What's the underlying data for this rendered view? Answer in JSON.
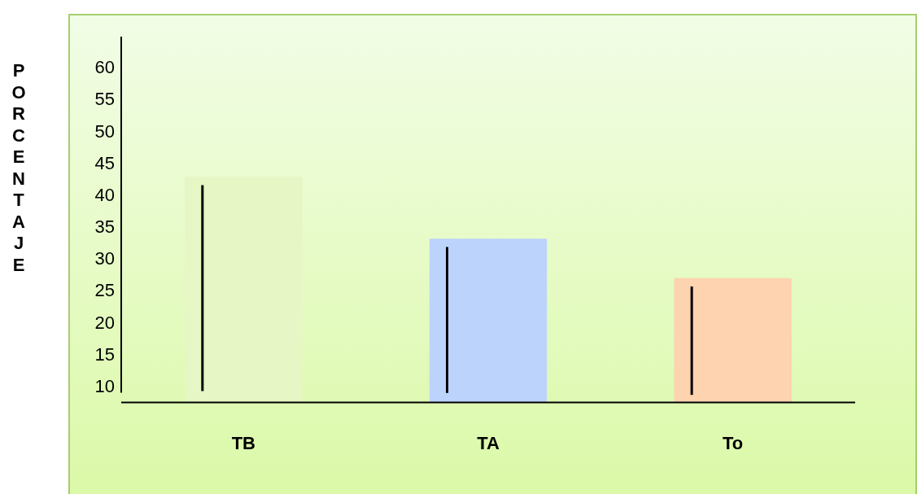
{
  "chart_data": {
    "type": "bar",
    "ylabel": "PORCENTAJE",
    "categories": [
      "TB",
      "TA",
      "To"
    ],
    "values": [
      43.0,
      33.3,
      27.1
    ],
    "colors": [
      "#e6f6c4",
      "#bcd3fb",
      "#fdd3b0"
    ],
    "errors": [
      [
        9.4,
        41.7
      ],
      [
        9.1,
        32.0
      ],
      [
        8.8,
        25.8
      ]
    ],
    "ylim": [
      7.6,
      65
    ],
    "yticks": [
      10,
      15,
      20,
      25,
      30,
      35,
      40,
      45,
      50,
      55,
      60
    ],
    "grid": false,
    "legend": false
  }
}
